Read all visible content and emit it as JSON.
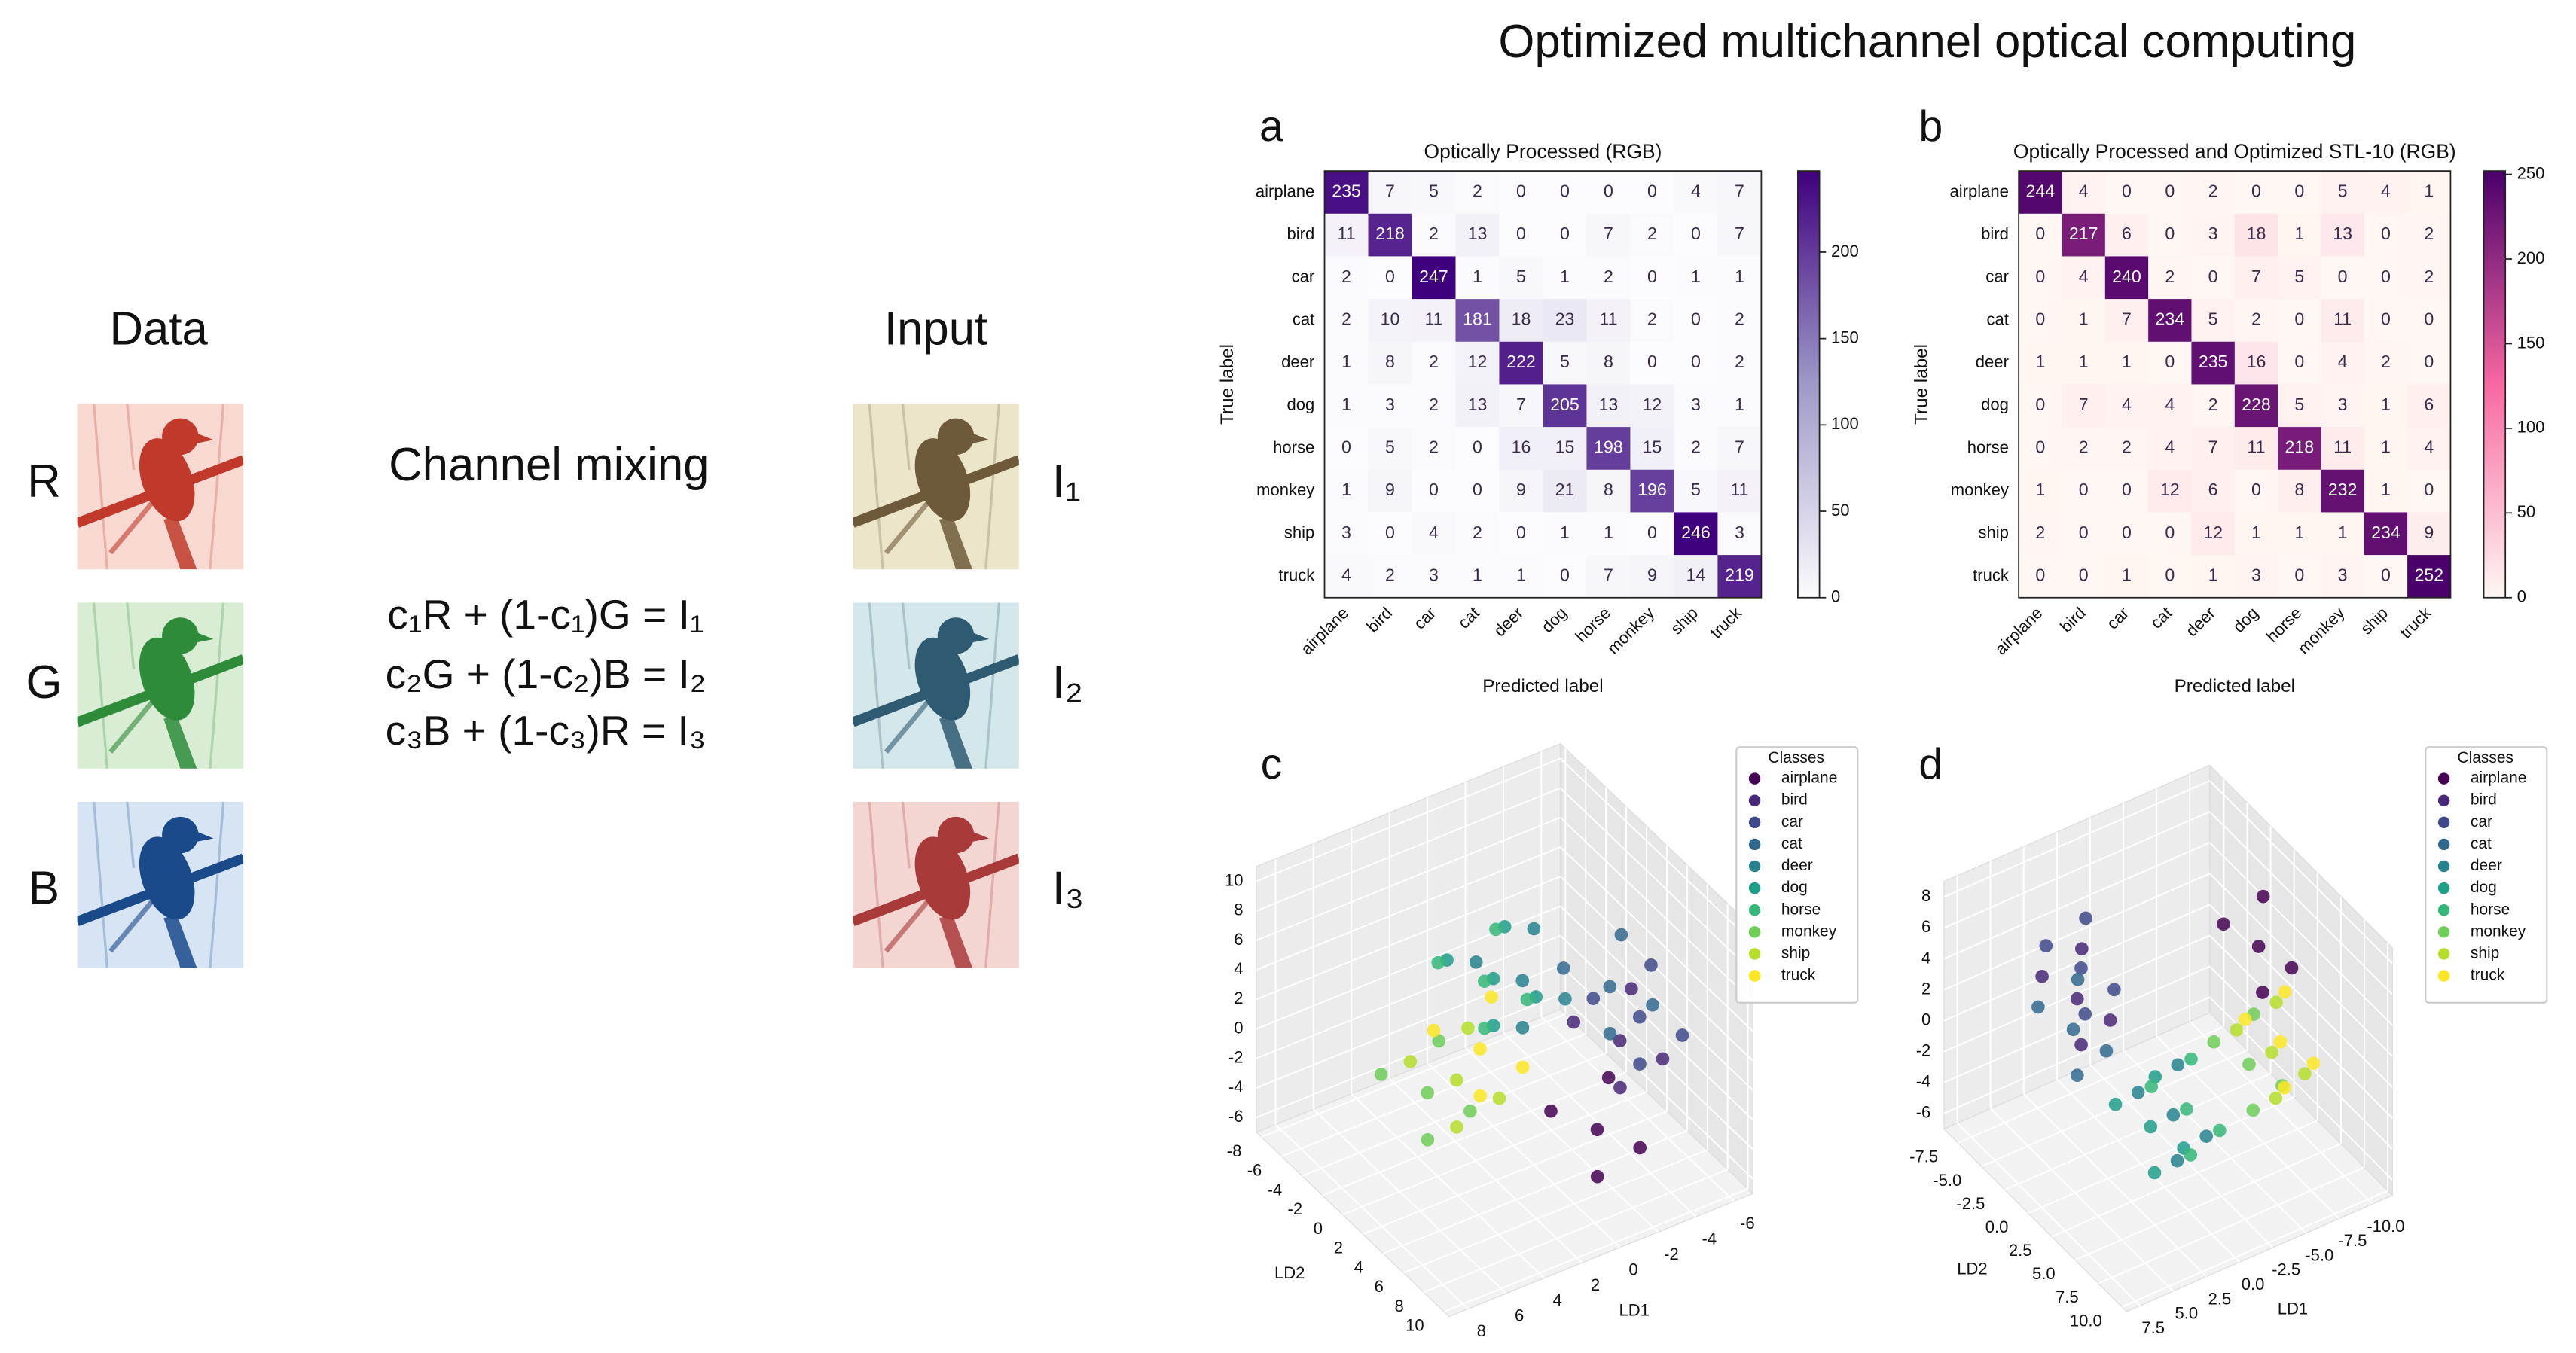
{
  "title": "Optimized multichannel optical computing",
  "left": {
    "data_label": "Data",
    "channels": [
      "R",
      "G",
      "B"
    ],
    "mixing_title": "Channel mixing",
    "equations": [
      "c₁R + (1-c₁)G = I₁",
      "c₂G + (1-c₂)B = I₂",
      "c₃B + (1-c₃)R = I₃"
    ],
    "input_label": "Input",
    "outputs": [
      "I₁",
      "I₂",
      "I₃"
    ]
  },
  "chart_data": [
    {
      "type": "heatmap",
      "panel": "a",
      "title": "Optically Processed (RGB)",
      "xlabel": "Predicted label",
      "ylabel": "True label",
      "categories": [
        "airplane",
        "bird",
        "car",
        "cat",
        "deer",
        "dog",
        "horse",
        "monkey",
        "ship",
        "truck"
      ],
      "values": [
        [
          235,
          7,
          5,
          2,
          0,
          0,
          0,
          0,
          4,
          7
        ],
        [
          11,
          218,
          2,
          13,
          0,
          0,
          7,
          2,
          0,
          7
        ],
        [
          2,
          0,
          247,
          1,
          5,
          1,
          2,
          0,
          1,
          1
        ],
        [
          2,
          10,
          11,
          181,
          18,
          23,
          11,
          2,
          0,
          2
        ],
        [
          1,
          8,
          2,
          12,
          222,
          5,
          8,
          0,
          0,
          2
        ],
        [
          1,
          3,
          2,
          13,
          7,
          205,
          13,
          12,
          3,
          1
        ],
        [
          0,
          5,
          2,
          0,
          16,
          15,
          198,
          15,
          2,
          7
        ],
        [
          1,
          9,
          0,
          0,
          9,
          21,
          8,
          196,
          5,
          11
        ],
        [
          3,
          0,
          4,
          2,
          0,
          1,
          1,
          0,
          246,
          3
        ],
        [
          4,
          2,
          3,
          1,
          1,
          0,
          7,
          9,
          14,
          219
        ]
      ],
      "colormap": [
        "#fcfbfd",
        "#9e9ac8",
        "#3f007d"
      ],
      "clim": [
        0,
        247
      ],
      "cticks": [
        0,
        50,
        100,
        150,
        200
      ]
    },
    {
      "type": "heatmap",
      "panel": "b",
      "title": "Optically Processed and Optimized STL-10 (RGB)",
      "xlabel": "Predicted label",
      "ylabel": "True label",
      "categories": [
        "airplane",
        "bird",
        "car",
        "cat",
        "deer",
        "dog",
        "horse",
        "monkey",
        "ship",
        "truck"
      ],
      "values": [
        [
          244,
          4,
          0,
          0,
          2,
          0,
          0,
          5,
          4,
          1
        ],
        [
          0,
          217,
          6,
          0,
          3,
          18,
          1,
          13,
          0,
          2
        ],
        [
          0,
          4,
          240,
          2,
          0,
          7,
          5,
          0,
          0,
          2
        ],
        [
          0,
          1,
          7,
          234,
          5,
          2,
          0,
          11,
          0,
          0
        ],
        [
          1,
          1,
          1,
          0,
          235,
          16,
          0,
          4,
          2,
          0
        ],
        [
          0,
          7,
          4,
          4,
          2,
          228,
          5,
          3,
          1,
          6
        ],
        [
          0,
          2,
          2,
          4,
          7,
          11,
          218,
          11,
          1,
          4
        ],
        [
          1,
          0,
          0,
          12,
          6,
          0,
          8,
          232,
          1,
          0
        ],
        [
          2,
          0,
          0,
          0,
          12,
          1,
          1,
          1,
          234,
          9
        ],
        [
          0,
          0,
          1,
          0,
          1,
          3,
          0,
          3,
          0,
          252
        ]
      ],
      "colormap": [
        "#fff7f3",
        "#f768a1",
        "#49006a"
      ],
      "clim": [
        0,
        252
      ],
      "cticks": [
        0,
        50,
        100,
        150,
        200,
        250
      ]
    },
    {
      "type": "scatter3d",
      "panel": "c",
      "xlabel": "LD1",
      "ylabel": "LD2",
      "legend_title": "Classes",
      "legend": "upper right",
      "grid": true,
      "xlim": [
        9,
        -7
      ],
      "xticks": [
        -6,
        -4,
        -2,
        0,
        2,
        4,
        6,
        8
      ],
      "ylim": [
        10.5,
        -8.5
      ],
      "yticks": [
        -8,
        -6,
        -4,
        -2,
        0,
        2,
        4,
        6,
        8,
        10
      ],
      "zlim": [
        -7,
        11
      ],
      "zticks": [
        -6,
        -4,
        -2,
        0,
        2,
        4,
        6,
        8,
        10
      ],
      "series": [
        {
          "name": "airplane",
          "color": "#440154",
          "x": [
            -2,
            -0.2,
            -3.5,
            -1.1,
            -3.4
          ],
          "y": [
            4.5,
            3.3,
            5.9,
            6.2,
            3.0
          ],
          "z": [
            -4,
            -2.6,
            -5.1,
            -5.6,
            -2.2
          ]
        },
        {
          "name": "bird",
          "color": "#482878",
          "x": [
            -4,
            -2.2,
            -5.5,
            -3.1,
            -5.4
          ],
          "y": [
            3,
            1.8,
            4.4,
            4.7,
            1.5
          ],
          "z": [
            0,
            1.4,
            -1.1,
            -1.6,
            1.8
          ]
        },
        {
          "name": "car",
          "color": "#3e4989",
          "x": [
            -4.5,
            -2.7,
            -6,
            -3.6,
            -5.9
          ],
          "y": [
            4,
            2.8,
            5.4,
            5.7,
            2.5
          ],
          "z": [
            2,
            3.4,
            0.9,
            0.4,
            3.8
          ]
        },
        {
          "name": "cat",
          "color": "#31688e",
          "x": [
            -4,
            -2.2,
            -5.5,
            -3.1,
            -5.4
          ],
          "y": [
            2,
            0.8,
            3.4,
            3.7,
            0.5
          ],
          "z": [
            3,
            4.4,
            1.9,
            1.4,
            4.8
          ]
        },
        {
          "name": "deer",
          "color": "#26828e",
          "x": [
            -1,
            0.8,
            -2.5,
            -0.1,
            -2.4
          ],
          "y": [
            -1,
            -2.2,
            0.4,
            0.7,
            -2.5
          ],
          "z": [
            3,
            4.4,
            1.9,
            1.4,
            4.8
          ]
        },
        {
          "name": "dog",
          "color": "#1f9e89",
          "x": [
            0,
            1.8,
            -1.5,
            0.9,
            -1.4
          ],
          "y": [
            -2,
            -3.2,
            -0.6,
            -0.3,
            -3.5
          ],
          "z": [
            3,
            4.4,
            1.9,
            1.4,
            4.8
          ]
        },
        {
          "name": "horse",
          "color": "#35b779",
          "x": [
            1,
            2.8,
            -0.5,
            1.9,
            -0.4
          ],
          "y": [
            -1,
            -2.2,
            0.4,
            0.7,
            -2.5
          ],
          "z": [
            4,
            5.4,
            2.9,
            2.4,
            5.8
          ]
        },
        {
          "name": "monkey",
          "color": "#6ece58",
          "x": [
            4,
            5.8,
            2.5,
            4.9,
            2.6
          ],
          "y": [
            -1,
            -2.2,
            0.4,
            0.7,
            -2.5
          ],
          "z": [
            -2,
            -0.6,
            -3.1,
            -3.6,
            -0.2
          ]
        },
        {
          "name": "ship",
          "color": "#b5de2b",
          "x": [
            3,
            4.8,
            1.5,
            3.9,
            1.6
          ],
          "y": [
            0,
            -1.2,
            1.4,
            1.7,
            -1.5
          ],
          "z": [
            -1,
            0.4,
            -2.1,
            -2.6,
            0.8
          ]
        },
        {
          "name": "truck",
          "color": "#fde725",
          "x": [
            1.5,
            3.3,
            0,
            2.4,
            0.1
          ],
          "y": [
            -0.5,
            -1.7,
            0.9,
            1.2,
            -2
          ],
          "z": [
            0,
            1.4,
            -1.1,
            -1.6,
            1.8
          ]
        }
      ]
    },
    {
      "type": "scatter3d",
      "panel": "d",
      "xlabel": "LD1",
      "ylabel": "LD2",
      "legend_title": "Classes",
      "legend": "upper right",
      "grid": true,
      "xlim": [
        8.5,
        -11.5
      ],
      "xticks": [
        {
          "value": -10,
          "label": "-10.0"
        },
        -7.5,
        {
          "value": -5,
          "label": "-5.0"
        },
        -2.5,
        {
          "value": 0,
          "label": "0.0"
        },
        2.5,
        {
          "value": 5,
          "label": "5.0"
        },
        7.5
      ],
      "ylim": [
        10.5,
        -9
      ],
      "yticks": [
        -7.5,
        {
          "value": -5,
          "label": "-5.0"
        },
        -2.5,
        {
          "value": 0,
          "label": "0.0"
        },
        2.5,
        {
          "value": 5,
          "label": "5.0"
        },
        7.5,
        {
          "value": 10,
          "label": "10.0"
        }
      ],
      "zlim": [
        -7,
        9
      ],
      "zticks": [
        -6,
        -4,
        -2,
        0,
        2,
        4,
        6,
        8
      ],
      "series": [
        {
          "name": "airplane",
          "color": "#440154",
          "x": [
            -7,
            -5.2,
            -8.5,
            -6.1,
            -8.4
          ],
          "y": [
            2.6,
            1.4,
            4,
            4.3,
            1.1
          ],
          "z": [
            6,
            7.4,
            4.9,
            4.4,
            7.8
          ]
        },
        {
          "name": "bird",
          "color": "#482878",
          "x": [
            2,
            3.8,
            0.5,
            2.9,
            0.6
          ],
          "y": [
            -4,
            -5.2,
            -2.6,
            -2.3,
            -5.5
          ],
          "z": [
            2,
            3.4,
            0.9,
            0.4,
            3.8
          ]
        },
        {
          "name": "car",
          "color": "#3e4989",
          "x": [
            1,
            2.8,
            -0.5,
            1.9,
            -0.4
          ],
          "y": [
            -5,
            -6.2,
            -3.6,
            -3.3,
            -6.5
          ],
          "z": [
            3,
            4.4,
            1.9,
            1.4,
            4.8
          ]
        },
        {
          "name": "cat",
          "color": "#31688e",
          "x": [
            3,
            4.8,
            1.5,
            3.9,
            1.6
          ],
          "y": [
            -3,
            -4.2,
            -1.6,
            -1.3,
            -4.5
          ],
          "z": [
            1,
            2.4,
            -0.1,
            -0.6,
            2.8
          ]
        },
        {
          "name": "deer",
          "color": "#26828e",
          "x": [
            -1,
            0.8,
            -2.5,
            -0.1,
            -2.4
          ],
          "y": [
            2,
            0.8,
            3.4,
            3.7,
            0.5
          ],
          "z": [
            -3,
            -1.6,
            -4.1,
            -4.6,
            -1.2
          ]
        },
        {
          "name": "dog",
          "color": "#1f9e89",
          "x": [
            0,
            1.8,
            -1.5,
            0.9,
            -1.4
          ],
          "y": [
            1,
            -0.2,
            2.4,
            2.7,
            -0.5
          ],
          "z": [
            -4,
            -2.6,
            -5.1,
            -5.6,
            -2.2
          ]
        },
        {
          "name": "horse",
          "color": "#35b779",
          "x": [
            -2,
            -0.2,
            -3.5,
            -1.1,
            -3.4
          ],
          "y": [
            2,
            0.8,
            3.4,
            3.7,
            0.5
          ],
          "z": [
            -3,
            -1.6,
            -4.1,
            -4.6,
            -1.2
          ]
        },
        {
          "name": "monkey",
          "color": "#6ece58",
          "x": [
            -6,
            -4.2,
            -7.5,
            -5.1,
            -7.4
          ],
          "y": [
            3,
            1.8,
            4.4,
            4.7,
            1.5
          ],
          "z": [
            -1,
            0.4,
            -2.1,
            -2.6,
            0.8
          ]
        },
        {
          "name": "ship",
          "color": "#b5de2b",
          "x": [
            -7,
            -5.2,
            -8.5,
            -6.1,
            -8.4
          ],
          "y": [
            4,
            2.8,
            5.4,
            5.7,
            2.5
          ],
          "z": [
            0,
            1.4,
            -1.1,
            -1.6,
            1.8
          ]
        },
        {
          "name": "truck",
          "color": "#fde725",
          "x": [
            -8,
            -6.2,
            -9.5,
            -7.1,
            -9.4
          ],
          "y": [
            3.5,
            2.3,
            4.9,
            5.2,
            2
          ],
          "z": [
            0,
            1.4,
            -1.1,
            -1.6,
            1.8
          ]
        }
      ]
    }
  ]
}
